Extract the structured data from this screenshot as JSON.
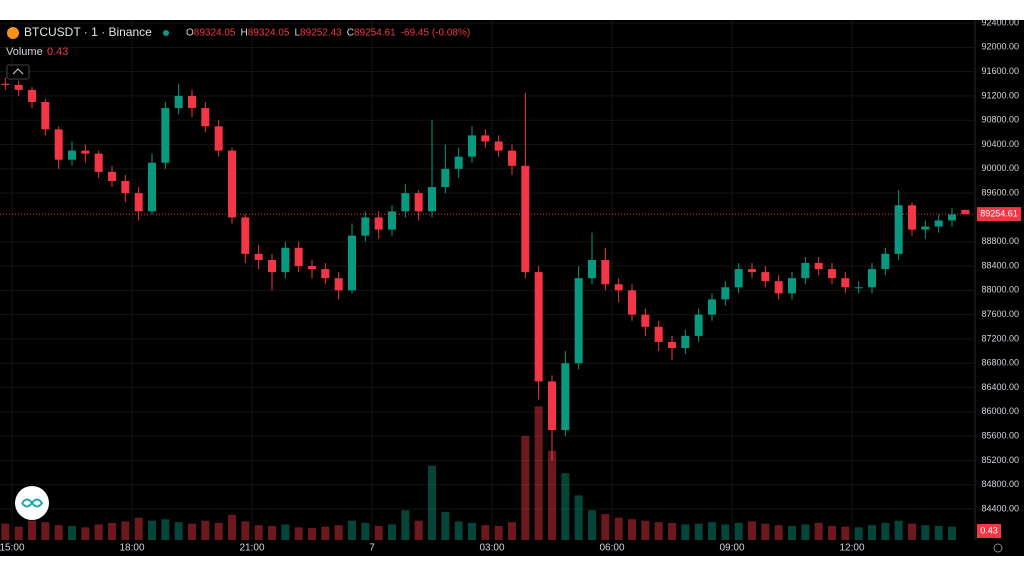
{
  "chart_data": {
    "type": "candlestick",
    "title": "BTCUSDT · 1 · Binance",
    "ohlc_letters": [
      "O",
      "H",
      "L",
      "C"
    ],
    "change_label": "-69.45 (-0.08%)",
    "volume_label": "Volume",
    "up_color": "#089981",
    "down_color": "#f23645",
    "x": [
      890,
      910,
      930,
      950,
      970,
      990,
      1010,
      1030,
      1050,
      1070,
      1090,
      1110,
      1130,
      1150,
      1170,
      1190,
      1210,
      1230,
      1250,
      1270,
      1290,
      1310,
      1330,
      1350,
      1370,
      1390,
      1410,
      1430,
      1450,
      1470,
      1490,
      1510,
      1530,
      1550,
      1570,
      1590,
      1610,
      1630,
      1650,
      1670,
      1690,
      1710,
      1730,
      1750,
      1770,
      1790,
      1810,
      1830,
      1850,
      1870,
      1890,
      1910,
      1930,
      1950,
      1970,
      1990,
      2010,
      2030,
      2050,
      2070,
      2090,
      2110,
      2130,
      2150,
      2170,
      2190,
      2210,
      2230,
      2250,
      2270,
      2290,
      2310,
      2330
    ],
    "open": [
      91400,
      91380,
      91300,
      91100,
      90650,
      90150,
      90300,
      90250,
      89950,
      89800,
      89600,
      89300,
      90100,
      91000,
      91200,
      91000,
      90700,
      90300,
      89200,
      88600,
      88500,
      88300,
      88700,
      88400,
      88350,
      88200,
      88000,
      88900,
      89200,
      89000,
      89300,
      89600,
      89300,
      89700,
      90000,
      90200,
      90550,
      90450,
      90300,
      90050,
      88300,
      86500,
      85700,
      86800,
      88200,
      88500,
      88100,
      88000,
      87600,
      87400,
      87150,
      87050,
      87250,
      87600,
      87850,
      88050,
      88350,
      88300,
      88150,
      87950,
      88200,
      88450,
      88350,
      88200,
      88050,
      88050,
      88350,
      88600,
      89400,
      89000,
      89050,
      89150,
      89324.05
    ],
    "high": [
      91500,
      91450,
      91350,
      91150,
      90700,
      90450,
      90400,
      90300,
      90050,
      89900,
      89700,
      90250,
      91100,
      91400,
      91300,
      91100,
      90800,
      90350,
      89250,
      88750,
      88600,
      88800,
      88800,
      88500,
      88450,
      88300,
      89100,
      89300,
      89300,
      89400,
      89750,
      89650,
      90800,
      90400,
      90350,
      90700,
      90650,
      90550,
      90400,
      91250,
      88400,
      86600,
      87000,
      88400,
      88950,
      88700,
      88200,
      88100,
      87700,
      87500,
      87250,
      87350,
      87700,
      87950,
      88150,
      88450,
      88450,
      88400,
      88250,
      88300,
      88550,
      88550,
      88450,
      88300,
      88150,
      88450,
      88700,
      89650,
      89450,
      89150,
      89250,
      89350,
      89324.05
    ],
    "low": [
      91300,
      91200,
      91000,
      90550,
      90000,
      90050,
      90100,
      89850,
      89700,
      89450,
      89150,
      89250,
      90000,
      90900,
      90850,
      90600,
      90200,
      89100,
      88450,
      88350,
      88000,
      88200,
      88300,
      88200,
      88100,
      87850,
      87950,
      88800,
      88850,
      88900,
      89200,
      89150,
      89200,
      89600,
      89850,
      90100,
      90350,
      90200,
      89900,
      88200,
      86200,
      85200,
      85600,
      86700,
      88100,
      88000,
      87800,
      87500,
      87250,
      87000,
      86850,
      86950,
      87150,
      87500,
      87750,
      87950,
      88200,
      88050,
      87850,
      87850,
      88100,
      88250,
      88100,
      87950,
      87950,
      87950,
      88250,
      88500,
      88900,
      88850,
      88950,
      89050,
      89252.43
    ],
    "close": [
      91380,
      91300,
      91100,
      90650,
      90150,
      90300,
      90250,
      89950,
      89800,
      89600,
      89300,
      90100,
      91000,
      91200,
      91000,
      90700,
      90300,
      89200,
      88600,
      88500,
      88300,
      88700,
      88400,
      88350,
      88200,
      88000,
      88900,
      89200,
      89000,
      89300,
      89600,
      89300,
      89700,
      90000,
      90200,
      90550,
      90450,
      90300,
      90050,
      88300,
      86500,
      85700,
      86800,
      88200,
      88500,
      88100,
      88000,
      87600,
      87400,
      87150,
      87050,
      87250,
      87600,
      87850,
      88050,
      88350,
      88300,
      88150,
      87950,
      88200,
      88450,
      88350,
      88200,
      88050,
      88050,
      88350,
      88600,
      89400,
      89000,
      89050,
      89150,
      89250,
      89254.61
    ],
    "volume": [
      220,
      180,
      260,
      240,
      200,
      190,
      170,
      210,
      230,
      250,
      300,
      260,
      280,
      240,
      220,
      260,
      230,
      340,
      250,
      200,
      190,
      210,
      170,
      160,
      180,
      200,
      260,
      230,
      190,
      210,
      400,
      260,
      1000,
      380,
      250,
      230,
      200,
      190,
      240,
      1400,
      1800,
      1200,
      900,
      600,
      400,
      350,
      300,
      280,
      260,
      240,
      230,
      210,
      220,
      240,
      210,
      230,
      250,
      220,
      200,
      190,
      210,
      230,
      190,
      180,
      170,
      200,
      230,
      260,
      220,
      200,
      190,
      180,
      0.43
    ],
    "xlim": [
      882,
      2344.5
    ],
    "ylim": [
      83890,
      92450
    ],
    "vlim": [
      0,
      7000
    ],
    "grid": true,
    "xticks": [
      {
        "value": 900,
        "label": "15:00"
      },
      {
        "value": 1080,
        "label": "18:00"
      },
      {
        "value": 1260,
        "label": "21:00"
      },
      {
        "value": 1440,
        "label": "7"
      },
      {
        "value": 1620,
        "label": "03:00"
      },
      {
        "value": 1800,
        "label": "06:00"
      },
      {
        "value": 1980,
        "label": "09:00"
      },
      {
        "value": 2160,
        "label": "12:00"
      }
    ],
    "yticks": [
      {
        "value": 84400,
        "label": "84400.00"
      },
      {
        "value": 84800,
        "label": "84800.00"
      },
      {
        "value": 85200,
        "label": "85200.00"
      },
      {
        "value": 85600,
        "label": "85600.00"
      },
      {
        "value": 86000,
        "label": "86000.00"
      },
      {
        "value": 86400,
        "label": "86400.00"
      },
      {
        "value": 86800,
        "label": "86800.00"
      },
      {
        "value": 87200,
        "label": "87200.00"
      },
      {
        "value": 87600,
        "label": "87600.00"
      },
      {
        "value": 88000,
        "label": "88000.00"
      },
      {
        "value": 88400,
        "label": "88400.00"
      },
      {
        "value": 88800,
        "label": "88800.00"
      },
      {
        "value": 89600,
        "label": "89600.00"
      },
      {
        "value": 90000,
        "label": "90000.00"
      },
      {
        "value": 90400,
        "label": "90400.00"
      },
      {
        "value": 90800,
        "label": "90800.00"
      },
      {
        "value": 91200,
        "label": "91200.00"
      },
      {
        "value": 91600,
        "label": "91600.00"
      },
      {
        "value": 92000,
        "label": "92000.00"
      },
      {
        "value": 92400,
        "label": "92400.00"
      }
    ]
  }
}
